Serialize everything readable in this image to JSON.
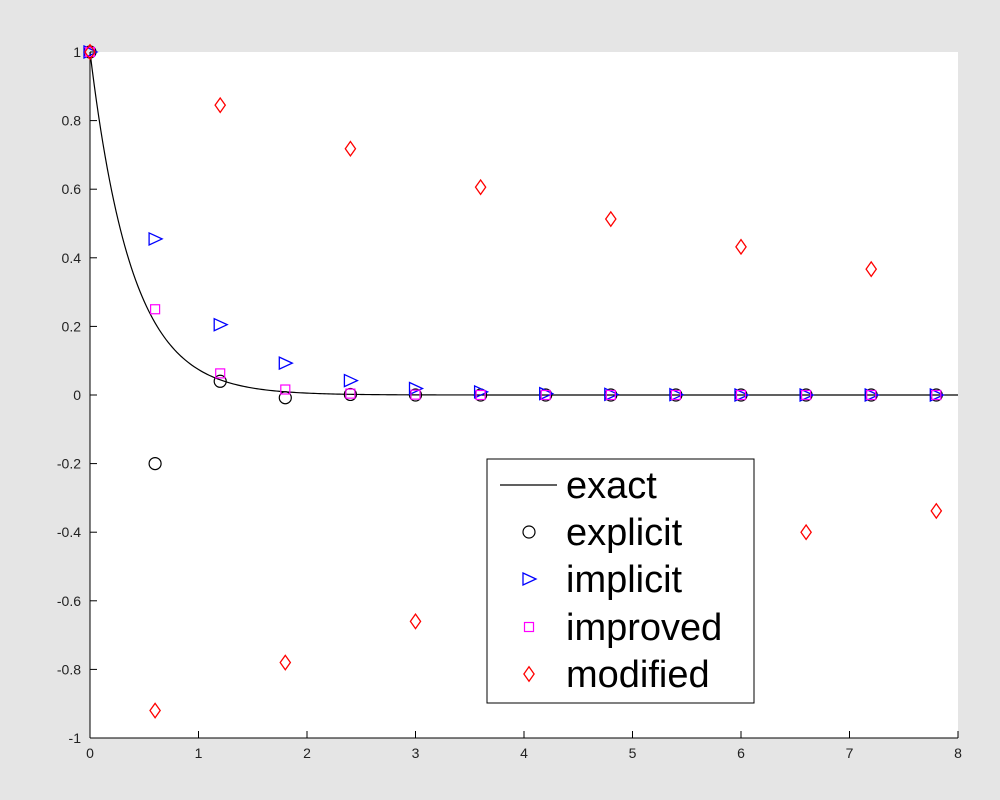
{
  "chart_data": {
    "type": "scatter",
    "title": "",
    "xlabel": "",
    "ylabel": "",
    "xlim": [
      0,
      8
    ],
    "ylim": [
      -1,
      1
    ],
    "xticks": [
      "0",
      "1",
      "2",
      "3",
      "4",
      "5",
      "6",
      "7",
      "8"
    ],
    "yticks": [
      "-1",
      "-0.8",
      "-0.6",
      "-0.4",
      "-0.2",
      "0",
      "0.2",
      "0.4",
      "0.6",
      "0.8",
      "1"
    ],
    "grid": false,
    "legend_position": "lower-center",
    "colors": {
      "background": "#e5e5e5",
      "axes": "#ffffff",
      "exact": "#000000",
      "explicit": "#000000",
      "implicit": "#0000ff",
      "improved": "#ff00ff",
      "modified": "#ff0000"
    },
    "series": [
      {
        "name": "exact",
        "style": "line",
        "formula": "exp(-2.6x)"
      },
      {
        "name": "explicit",
        "style": "circle",
        "x": [
          0,
          0.6,
          1.2,
          1.8,
          2.4,
          3.0,
          3.6,
          4.2,
          4.8,
          5.4,
          6.0,
          6.6,
          7.2,
          7.8
        ],
        "y": [
          1,
          -0.2,
          0.04,
          -0.008,
          0.0016,
          0,
          0,
          0,
          0,
          0,
          0,
          0,
          0,
          0
        ]
      },
      {
        "name": "implicit",
        "style": "triangle-right",
        "x": [
          0,
          0.6,
          1.2,
          1.8,
          2.4,
          3.0,
          3.6,
          4.2,
          4.8,
          5.4,
          6.0,
          6.6,
          7.2,
          7.8
        ],
        "y": [
          1,
          0.455,
          0.205,
          0.093,
          0.042,
          0.019,
          0.009,
          0.004,
          0.002,
          0.001,
          0,
          0,
          0,
          0
        ]
      },
      {
        "name": "improved",
        "style": "square",
        "x": [
          0,
          0.6,
          1.2,
          1.8,
          2.4,
          3.0,
          3.6,
          4.2,
          4.8,
          5.4,
          6.0,
          6.6,
          7.2,
          7.8
        ],
        "y": [
          1,
          0.25,
          0.063,
          0.016,
          0.004,
          0.001,
          0,
          0,
          0,
          0,
          0,
          0,
          0,
          0
        ]
      },
      {
        "name": "modified",
        "style": "diamond",
        "x": [
          0,
          0.6,
          1.2,
          1.8,
          2.4,
          3.0,
          3.6,
          4.2,
          4.8,
          5.4,
          6.0,
          6.6,
          7.2,
          7.8
        ],
        "y": [
          1,
          -0.92,
          0.845,
          -0.78,
          0.718,
          -0.66,
          0.606,
          -0.56,
          0.513,
          -0.47,
          0.432,
          -0.4,
          0.367,
          -0.338
        ]
      }
    ]
  }
}
